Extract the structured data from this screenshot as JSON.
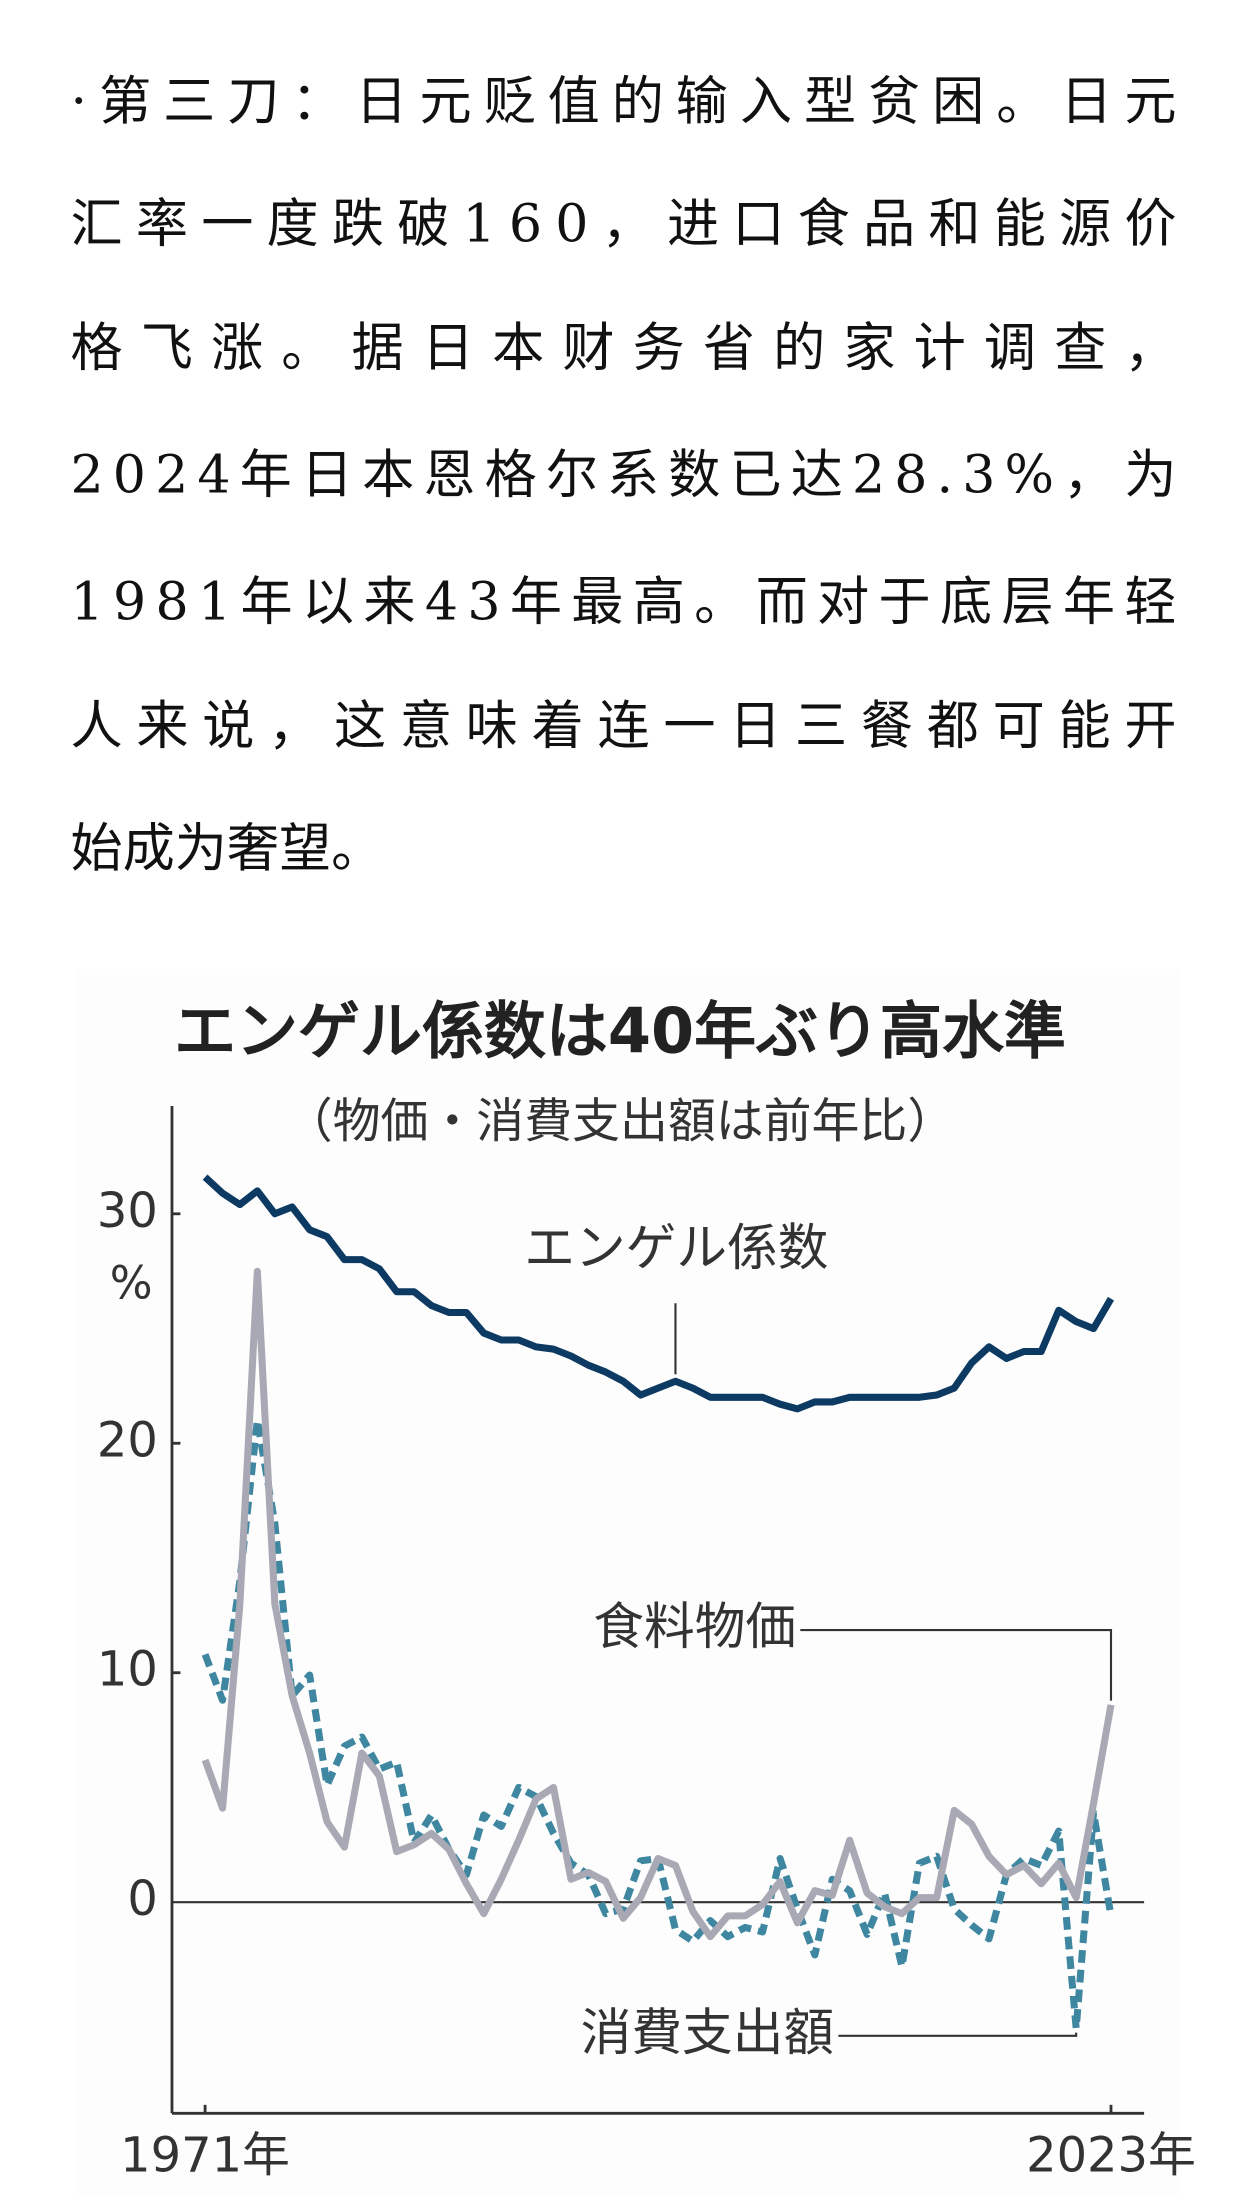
{
  "article": {
    "lines": [
      "·第三刀：日元贬值的输入型贫困。日元",
      "汇率一度跌破160，进口食品和能源价",
      "格飞涨。据日本财务省的家计调查，",
      "2024年日本恩格尔系数已达28.3%，为",
      "1981年以来43年最高。而对于底层年轻",
      "人来说，这意味着连一日三餐都可能开",
      "始成为奢望。"
    ]
  },
  "chart_data": {
    "type": "line",
    "title": "エンゲル係数は40年ぶり高水準",
    "subtitle": "（物価・消費支出額は前年比）",
    "y_unit": "%",
    "x": [
      1971,
      1972,
      1973,
      1974,
      1975,
      1976,
      1977,
      1978,
      1979,
      1980,
      1981,
      1982,
      1983,
      1984,
      1985,
      1986,
      1987,
      1988,
      1989,
      1990,
      1991,
      1992,
      1993,
      1994,
      1995,
      1996,
      1997,
      1998,
      1999,
      2000,
      2001,
      2002,
      2003,
      2004,
      2005,
      2006,
      2007,
      2008,
      2009,
      2010,
      2011,
      2012,
      2013,
      2014,
      2015,
      2016,
      2017,
      2018,
      2019,
      2020,
      2021,
      2022,
      2023
    ],
    "xlim": [
      1969.1,
      2024.9
    ],
    "xticks": [
      {
        "value": 1971,
        "label": "1971年"
      },
      {
        "value": 2023,
        "label": "2023年"
      }
    ],
    "ylim": [
      -9.2,
      34.7
    ],
    "yticks": [
      30,
      20,
      10,
      0
    ],
    "series": [
      {
        "name": "エンゲル係数",
        "color": "#0d3a63",
        "dashed": false,
        "values": [
          31.6,
          30.9,
          30.4,
          31.0,
          30.0,
          30.3,
          29.3,
          29.0,
          28.0,
          28.0,
          27.6,
          26.6,
          26.6,
          26.0,
          25.7,
          25.7,
          24.8,
          24.5,
          24.5,
          24.2,
          24.1,
          23.8,
          23.4,
          23.1,
          22.7,
          22.1,
          22.4,
          22.7,
          22.4,
          22.0,
          22.0,
          22.0,
          22.0,
          21.7,
          21.5,
          21.8,
          21.8,
          22.0,
          22.0,
          22.0,
          22.0,
          22.0,
          22.1,
          22.4,
          23.5,
          24.2,
          23.7,
          24.0,
          24.0,
          25.8,
          25.3,
          25.0,
          26.3
        ]
      },
      {
        "name": "食料物価",
        "color": "#a8a9b4",
        "dashed": false,
        "values": [
          6.2,
          4.1,
          13,
          27.5,
          13,
          9,
          6.5,
          3.5,
          2.4,
          6.5,
          5.5,
          2.2,
          2.5,
          3,
          2.3,
          0.8,
          -0.5,
          1.0,
          2.7,
          4.5,
          5.0,
          1.0,
          1.3,
          0.9,
          -0.7,
          0.2,
          1.9,
          1.6,
          -0.4,
          -1.5,
          -0.6,
          -0.6,
          -0.1,
          0.9,
          -0.9,
          0.5,
          0.3,
          2.7,
          0.4,
          -0.2,
          -0.5,
          0.2,
          0.2,
          4.0,
          3.4,
          2.0,
          1.2,
          1.6,
          0.8,
          1.7,
          0.2,
          4.3,
          8.6
        ]
      },
      {
        "name": "消費支出額",
        "color": "#3f87a0",
        "dashed": true,
        "values": [
          10.8,
          8.8,
          14,
          21,
          16.5,
          9,
          9.9,
          5.1,
          6.8,
          7.2,
          5.8,
          6.1,
          2.6,
          3.8,
          2.3,
          1.2,
          3.8,
          3.3,
          5.0,
          4.6,
          3.0,
          1.7,
          1.2,
          -0.5,
          -0.3,
          1.8,
          1.9,
          -1.2,
          -1.7,
          -0.8,
          -1.5,
          -1.1,
          -1.3,
          1.9,
          -0.3,
          -2.3,
          1.0,
          0.5,
          -1.4,
          0.4,
          -2.8,
          1.7,
          2.0,
          -0.3,
          -1.0,
          -1.6,
          1.2,
          1.9,
          1.6,
          3.1,
          -5.5,
          3.9,
          -0.6
        ]
      }
    ]
  }
}
